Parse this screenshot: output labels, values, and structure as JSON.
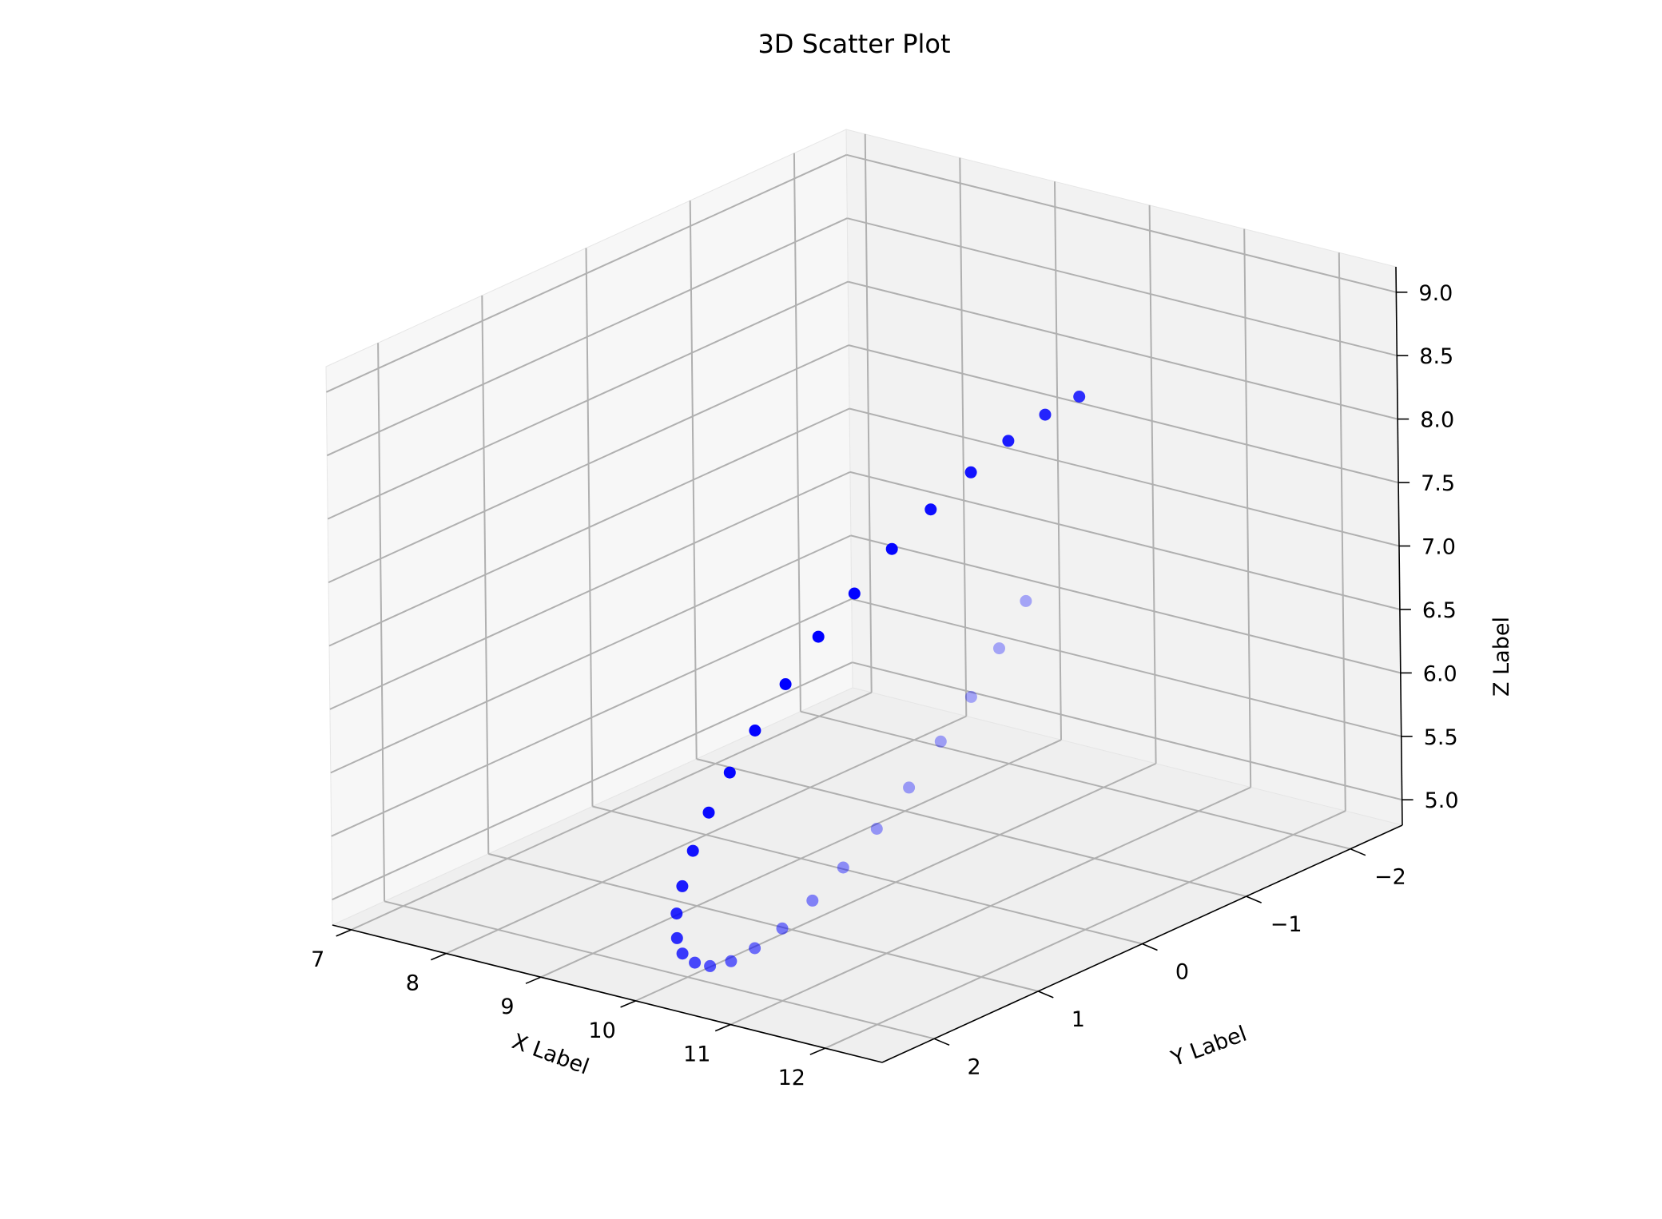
{
  "chart_data": {
    "type": "scatter",
    "title": "3D Scatter Plot",
    "xlabel": "X Label",
    "ylabel": "Y Label",
    "zlabel": "Z Label",
    "x_ticks": [
      "7",
      "8",
      "9",
      "10",
      "11",
      "12"
    ],
    "y_ticks": [
      "2",
      "1",
      "0",
      "−1",
      "−2"
    ],
    "z_ticks": [
      "5.0",
      "5.5",
      "6.0",
      "6.5",
      "7.0",
      "7.5",
      "8.0",
      "8.5",
      "9.0"
    ],
    "xlim": [
      6.8,
      12.6
    ],
    "ylim": [
      2.5,
      -2.5
    ],
    "zlim": [
      4.8,
      9.2
    ],
    "grid": true,
    "marker_color": "#0000ff",
    "points": [
      {
        "x": 12.0,
        "y": 0.0,
        "z": 9.0
      },
      {
        "x": 11.98,
        "y": 0.31,
        "z": 8.97
      },
      {
        "x": 11.93,
        "y": 0.62,
        "z": 8.87
      },
      {
        "x": 11.84,
        "y": 0.9,
        "z": 8.71
      },
      {
        "x": 11.72,
        "y": 1.18,
        "z": 8.5
      },
      {
        "x": 11.57,
        "y": 1.42,
        "z": 8.25
      },
      {
        "x": 11.39,
        "y": 1.62,
        "z": 7.94
      },
      {
        "x": 11.18,
        "y": 1.78,
        "z": 7.62
      },
      {
        "x": 10.96,
        "y": 1.9,
        "z": 7.25
      },
      {
        "x": 10.72,
        "y": 1.98,
        "z": 6.87
      },
      {
        "x": 10.47,
        "y": 2.0,
        "z": 6.5
      },
      {
        "x": 10.22,
        "y": 1.98,
        "z": 6.13
      },
      {
        "x": 9.96,
        "y": 1.9,
        "z": 5.75
      },
      {
        "x": 9.71,
        "y": 1.78,
        "z": 5.38
      },
      {
        "x": 9.47,
        "y": 1.62,
        "z": 5.06
      },
      {
        "x": 9.25,
        "y": 1.42,
        "z": 4.75
      },
      {
        "x": 9.04,
        "y": 1.18,
        "z": 4.5
      },
      {
        "x": 8.86,
        "y": 0.9,
        "z": 4.29
      },
      {
        "x": 8.71,
        "y": 0.62,
        "z": 4.13
      },
      {
        "x": 8.59,
        "y": 0.31,
        "z": 4.03
      },
      {
        "x": 8.5,
        "y": 0.0,
        "z": 4.0
      },
      {
        "x": 8.45,
        "y": -0.31,
        "z": 4.03
      },
      {
        "x": 8.43,
        "y": -0.62,
        "z": 4.13
      },
      {
        "x": 8.45,
        "y": -0.9,
        "z": 4.29
      },
      {
        "x": 8.5,
        "y": -1.18,
        "z": 4.5
      },
      {
        "x": 8.58,
        "y": -1.42,
        "z": 4.75
      },
      {
        "x": 8.7,
        "y": -1.62,
        "z": 5.06
      },
      {
        "x": 8.85,
        "y": -1.78,
        "z": 5.38
      },
      {
        "x": 9.02,
        "y": -1.9,
        "z": 5.75
      },
      {
        "x": 9.22,
        "y": -1.98,
        "z": 6.13
      }
    ]
  }
}
